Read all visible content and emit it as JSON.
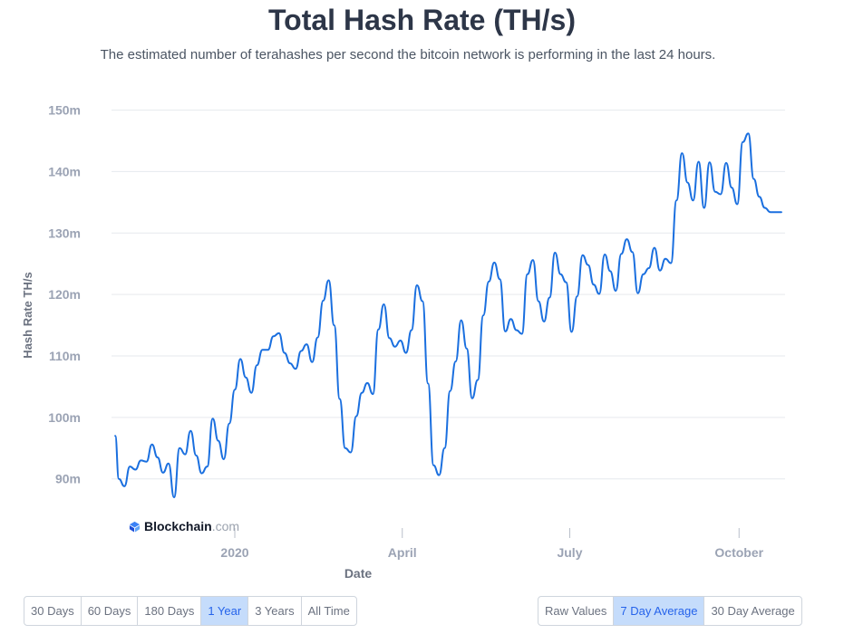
{
  "header": {
    "title": "Total Hash Rate (TH/s)",
    "subtitle": "The estimated number of terahashes per second the bitcoin network is performing in the last 24 hours."
  },
  "watermark": {
    "brand": "Blockchain",
    "suffix": ".com"
  },
  "range_buttons": [
    {
      "label": "30 Days",
      "active": false
    },
    {
      "label": "60 Days",
      "active": false
    },
    {
      "label": "180 Days",
      "active": false
    },
    {
      "label": "1 Year",
      "active": true
    },
    {
      "label": "3 Years",
      "active": false
    },
    {
      "label": "All Time",
      "active": false
    }
  ],
  "avg_buttons": [
    {
      "label": "Raw Values",
      "active": false
    },
    {
      "label": "7 Day Average",
      "active": true
    },
    {
      "label": "30 Day Average",
      "active": false
    }
  ],
  "colors": {
    "line": "#1a6fdf",
    "grid": "#e6e9ee",
    "axis_text": "#9ba3b4",
    "label_text": "#6b7280"
  },
  "chart_data": {
    "type": "line",
    "title": "Total Hash Rate (TH/s)",
    "xlabel": "Date",
    "ylabel": "Hash Rate TH/s",
    "ylim": [
      82000000,
      152000000
    ],
    "xlim": [
      "2019-10-26",
      "2020-10-26"
    ],
    "grid": "horizontal",
    "y_ticks": [
      {
        "value": 90000000,
        "label": "90m"
      },
      {
        "value": 100000000,
        "label": "100m"
      },
      {
        "value": 110000000,
        "label": "110m"
      },
      {
        "value": 120000000,
        "label": "120m"
      },
      {
        "value": 130000000,
        "label": "130m"
      },
      {
        "value": 140000000,
        "label": "140m"
      },
      {
        "value": 150000000,
        "label": "150m"
      }
    ],
    "x_ticks": [
      {
        "value": "2020-01-01",
        "label": "2020"
      },
      {
        "value": "2020-04-01",
        "label": "April"
      },
      {
        "value": "2020-07-01",
        "label": "July"
      },
      {
        "value": "2020-10-01",
        "label": "October"
      }
    ],
    "series": [
      {
        "x": [
          "2019-10-28",
          "2019-10-30",
          "2019-11-02",
          "2019-11-05",
          "2019-11-08",
          "2019-11-11",
          "2019-11-14",
          "2019-11-17",
          "2019-11-20",
          "2019-11-23",
          "2019-11-26",
          "2019-11-29",
          "2019-12-02",
          "2019-12-05",
          "2019-12-08",
          "2019-12-11",
          "2019-12-14",
          "2019-12-17",
          "2019-12-20",
          "2019-12-23",
          "2019-12-26",
          "2019-12-29",
          "2020-01-01",
          "2020-01-04",
          "2020-01-07",
          "2020-01-10",
          "2020-01-13",
          "2020-01-16",
          "2020-01-19",
          "2020-01-22",
          "2020-01-25",
          "2020-01-28",
          "2020-01-31",
          "2020-02-03",
          "2020-02-06",
          "2020-02-09",
          "2020-02-12",
          "2020-02-15",
          "2020-02-18",
          "2020-02-21",
          "2020-02-24",
          "2020-02-27",
          "2020-03-01",
          "2020-03-04",
          "2020-03-07",
          "2020-03-10",
          "2020-03-13",
          "2020-03-16",
          "2020-03-19",
          "2020-03-22",
          "2020-03-25",
          "2020-03-28",
          "2020-03-31",
          "2020-04-03",
          "2020-04-06",
          "2020-04-09",
          "2020-04-12",
          "2020-04-15",
          "2020-04-18",
          "2020-04-21",
          "2020-04-24",
          "2020-04-27",
          "2020-04-30",
          "2020-05-03",
          "2020-05-06",
          "2020-05-09",
          "2020-05-12",
          "2020-05-15",
          "2020-05-18",
          "2020-05-21",
          "2020-05-24",
          "2020-05-27",
          "2020-05-30",
          "2020-06-02",
          "2020-06-05",
          "2020-06-08",
          "2020-06-11",
          "2020-06-14",
          "2020-06-17",
          "2020-06-20",
          "2020-06-23",
          "2020-06-26",
          "2020-06-29",
          "2020-07-02",
          "2020-07-05",
          "2020-07-08",
          "2020-07-11",
          "2020-07-14",
          "2020-07-17",
          "2020-07-20",
          "2020-07-23",
          "2020-07-26",
          "2020-07-29",
          "2020-08-01",
          "2020-08-04",
          "2020-08-07",
          "2020-08-10",
          "2020-08-13",
          "2020-08-16",
          "2020-08-19",
          "2020-08-22",
          "2020-08-25",
          "2020-08-28",
          "2020-08-31",
          "2020-09-03",
          "2020-09-06",
          "2020-09-09",
          "2020-09-12",
          "2020-09-15",
          "2020-09-18",
          "2020-09-21",
          "2020-09-24",
          "2020-09-27",
          "2020-09-30",
          "2020-10-03",
          "2020-10-06",
          "2020-10-09",
          "2020-10-12",
          "2020-10-15",
          "2020-10-18",
          "2020-10-21",
          "2020-10-24"
        ],
        "values": [
          97000000,
          90000000,
          88800000,
          92000000,
          91500000,
          93000000,
          92800000,
          95600000,
          93500000,
          91000000,
          92500000,
          87000000,
          95000000,
          94000000,
          97800000,
          93800000,
          90900000,
          92000000,
          99800000,
          96200000,
          93200000,
          99000000,
          104500000,
          109500000,
          106500000,
          104000000,
          108500000,
          111000000,
          111000000,
          113200000,
          113700000,
          110500000,
          108800000,
          107900000,
          110800000,
          111900000,
          109000000,
          113000000,
          119000000,
          122300000,
          115000000,
          103000000,
          95000000,
          94300000,
          100200000,
          104000000,
          105600000,
          103800000,
          114300000,
          118400000,
          112900000,
          111500000,
          112500000,
          110500000,
          114200000,
          121500000,
          118900000,
          105500000,
          92200000,
          90600000,
          95000000,
          104300000,
          109100000,
          115800000,
          111200000,
          103100000,
          106100000,
          116600000,
          122100000,
          125200000,
          122500000,
          114000000,
          116000000,
          114200000,
          113600000,
          123300000,
          125600000,
          118900000,
          115600000,
          119500000,
          126800000,
          123300000,
          122000000,
          113900000,
          119700000,
          126400000,
          124800000,
          121600000,
          120100000,
          126500000,
          123800000,
          120600000,
          126600000,
          129000000,
          126900000,
          120200000,
          123300000,
          124300000,
          127600000,
          123900000,
          125800000,
          125100000,
          135300000,
          143000000,
          138200000,
          135300000,
          141600000,
          134100000,
          141500000,
          136700000,
          136300000,
          141400000,
          137400000,
          134700000,
          144800000,
          146200000,
          138800000,
          135900000,
          134100000,
          133400000,
          133400000,
          133400000
        ]
      }
    ]
  }
}
